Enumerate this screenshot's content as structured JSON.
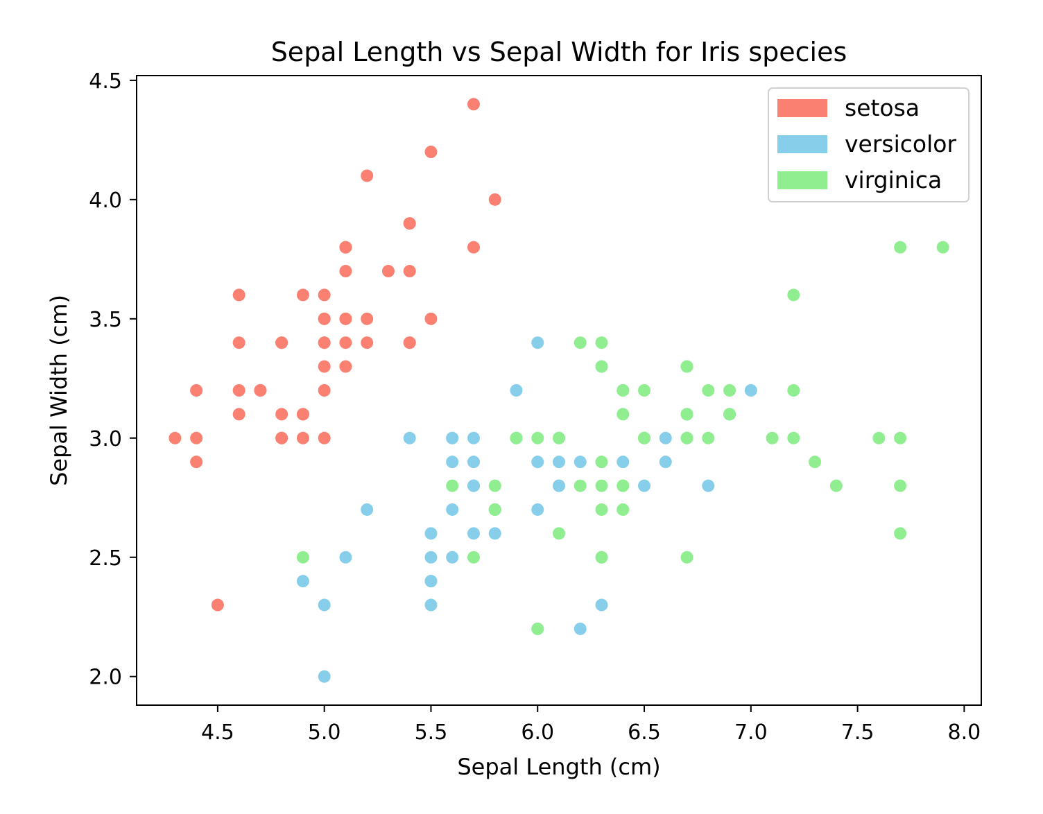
{
  "chart_data": {
    "type": "scatter",
    "title": "Sepal Length vs Sepal Width for Iris species",
    "xlabel": "Sepal Length (cm)",
    "ylabel": "Sepal Width (cm)",
    "xlim": [
      4.12,
      8.08
    ],
    "ylim": [
      1.88,
      4.52
    ],
    "xticks": [
      4.5,
      5.0,
      5.5,
      6.0,
      6.5,
      7.0,
      7.5,
      8.0
    ],
    "yticks": [
      2.0,
      2.5,
      3.0,
      3.5,
      4.0,
      4.5
    ],
    "xtick_labels": [
      "4.5",
      "5.0",
      "5.5",
      "6.0",
      "6.5",
      "7.0",
      "7.5",
      "8.0"
    ],
    "ytick_labels": [
      "2.0",
      "2.5",
      "3.0",
      "3.5",
      "4.0",
      "4.5"
    ],
    "grid": false,
    "legend": {
      "position": "top-right"
    },
    "series": [
      {
        "name": "setosa",
        "color": "#fa8072",
        "points": [
          [
            5.1,
            3.5
          ],
          [
            4.9,
            3.0
          ],
          [
            4.7,
            3.2
          ],
          [
            4.6,
            3.1
          ],
          [
            5.0,
            3.6
          ],
          [
            5.4,
            3.9
          ],
          [
            4.6,
            3.4
          ],
          [
            5.0,
            3.4
          ],
          [
            4.4,
            2.9
          ],
          [
            4.9,
            3.1
          ],
          [
            5.4,
            3.7
          ],
          [
            4.8,
            3.4
          ],
          [
            4.8,
            3.0
          ],
          [
            4.3,
            3.0
          ],
          [
            5.8,
            4.0
          ],
          [
            5.7,
            4.4
          ],
          [
            5.4,
            3.9
          ],
          [
            5.1,
            3.5
          ],
          [
            5.7,
            3.8
          ],
          [
            5.1,
            3.8
          ],
          [
            5.4,
            3.4
          ],
          [
            5.1,
            3.7
          ],
          [
            4.6,
            3.6
          ],
          [
            5.1,
            3.3
          ],
          [
            4.8,
            3.4
          ],
          [
            5.0,
            3.0
          ],
          [
            5.0,
            3.4
          ],
          [
            5.2,
            3.5
          ],
          [
            5.2,
            3.4
          ],
          [
            4.7,
            3.2
          ],
          [
            4.8,
            3.1
          ],
          [
            5.4,
            3.4
          ],
          [
            5.2,
            4.1
          ],
          [
            5.5,
            4.2
          ],
          [
            4.9,
            3.1
          ],
          [
            5.0,
            3.2
          ],
          [
            5.5,
            3.5
          ],
          [
            4.9,
            3.6
          ],
          [
            4.4,
            3.0
          ],
          [
            5.1,
            3.4
          ],
          [
            5.0,
            3.5
          ],
          [
            4.5,
            2.3
          ],
          [
            4.4,
            3.2
          ],
          [
            5.0,
            3.5
          ],
          [
            5.1,
            3.8
          ],
          [
            4.8,
            3.0
          ],
          [
            5.1,
            3.8
          ],
          [
            4.6,
            3.2
          ],
          [
            5.3,
            3.7
          ],
          [
            5.0,
            3.3
          ]
        ]
      },
      {
        "name": "versicolor",
        "color": "#87ceeb",
        "points": [
          [
            7.0,
            3.2
          ],
          [
            6.4,
            3.2
          ],
          [
            6.9,
            3.1
          ],
          [
            5.5,
            2.3
          ],
          [
            6.5,
            2.8
          ],
          [
            5.7,
            2.8
          ],
          [
            6.3,
            3.3
          ],
          [
            4.9,
            2.4
          ],
          [
            6.6,
            2.9
          ],
          [
            5.2,
            2.7
          ],
          [
            5.0,
            2.0
          ],
          [
            5.9,
            3.0
          ],
          [
            6.0,
            2.2
          ],
          [
            6.1,
            2.9
          ],
          [
            5.6,
            2.9
          ],
          [
            6.7,
            3.1
          ],
          [
            5.6,
            3.0
          ],
          [
            5.8,
            2.7
          ],
          [
            6.2,
            2.2
          ],
          [
            5.6,
            2.5
          ],
          [
            5.9,
            3.2
          ],
          [
            6.1,
            2.8
          ],
          [
            6.3,
            2.5
          ],
          [
            6.1,
            2.8
          ],
          [
            6.4,
            2.9
          ],
          [
            6.6,
            3.0
          ],
          [
            6.8,
            2.8
          ],
          [
            6.7,
            3.0
          ],
          [
            6.0,
            2.9
          ],
          [
            5.7,
            2.6
          ],
          [
            5.5,
            2.4
          ],
          [
            5.5,
            2.4
          ],
          [
            5.8,
            2.7
          ],
          [
            6.0,
            2.7
          ],
          [
            5.4,
            3.0
          ],
          [
            6.0,
            3.4
          ],
          [
            6.7,
            3.1
          ],
          [
            6.3,
            2.3
          ],
          [
            5.6,
            3.0
          ],
          [
            5.5,
            2.5
          ],
          [
            5.5,
            2.6
          ],
          [
            6.1,
            3.0
          ],
          [
            5.8,
            2.6
          ],
          [
            5.0,
            2.3
          ],
          [
            5.6,
            2.7
          ],
          [
            5.7,
            3.0
          ],
          [
            5.7,
            2.9
          ],
          [
            6.2,
            2.9
          ],
          [
            5.1,
            2.5
          ],
          [
            5.7,
            2.8
          ]
        ]
      },
      {
        "name": "virginica",
        "color": "#90ee90",
        "points": [
          [
            6.3,
            3.3
          ],
          [
            5.8,
            2.7
          ],
          [
            7.1,
            3.0
          ],
          [
            6.3,
            2.9
          ],
          [
            6.5,
            3.0
          ],
          [
            7.6,
            3.0
          ],
          [
            4.9,
            2.5
          ],
          [
            7.3,
            2.9
          ],
          [
            6.7,
            2.5
          ],
          [
            7.2,
            3.6
          ],
          [
            6.5,
            3.2
          ],
          [
            6.4,
            2.7
          ],
          [
            6.8,
            3.0
          ],
          [
            5.7,
            2.5
          ],
          [
            5.8,
            2.8
          ],
          [
            6.4,
            3.2
          ],
          [
            6.5,
            3.0
          ],
          [
            7.7,
            3.8
          ],
          [
            7.7,
            2.6
          ],
          [
            6.0,
            2.2
          ],
          [
            6.9,
            3.2
          ],
          [
            5.6,
            2.8
          ],
          [
            7.7,
            2.8
          ],
          [
            6.3,
            2.7
          ],
          [
            6.7,
            3.3
          ],
          [
            7.2,
            3.2
          ],
          [
            6.2,
            2.8
          ],
          [
            6.1,
            3.0
          ],
          [
            6.4,
            2.8
          ],
          [
            7.2,
            3.0
          ],
          [
            7.4,
            2.8
          ],
          [
            7.9,
            3.8
          ],
          [
            6.4,
            2.8
          ],
          [
            6.3,
            2.8
          ],
          [
            6.1,
            2.6
          ],
          [
            7.7,
            3.0
          ],
          [
            6.3,
            3.4
          ],
          [
            6.4,
            3.1
          ],
          [
            6.0,
            3.0
          ],
          [
            6.9,
            3.1
          ],
          [
            6.7,
            3.1
          ],
          [
            6.9,
            3.1
          ],
          [
            5.8,
            2.7
          ],
          [
            6.8,
            3.2
          ],
          [
            6.7,
            3.3
          ],
          [
            6.7,
            3.0
          ],
          [
            6.3,
            2.5
          ],
          [
            6.5,
            3.0
          ],
          [
            6.2,
            3.4
          ],
          [
            5.9,
            3.0
          ]
        ]
      }
    ]
  }
}
